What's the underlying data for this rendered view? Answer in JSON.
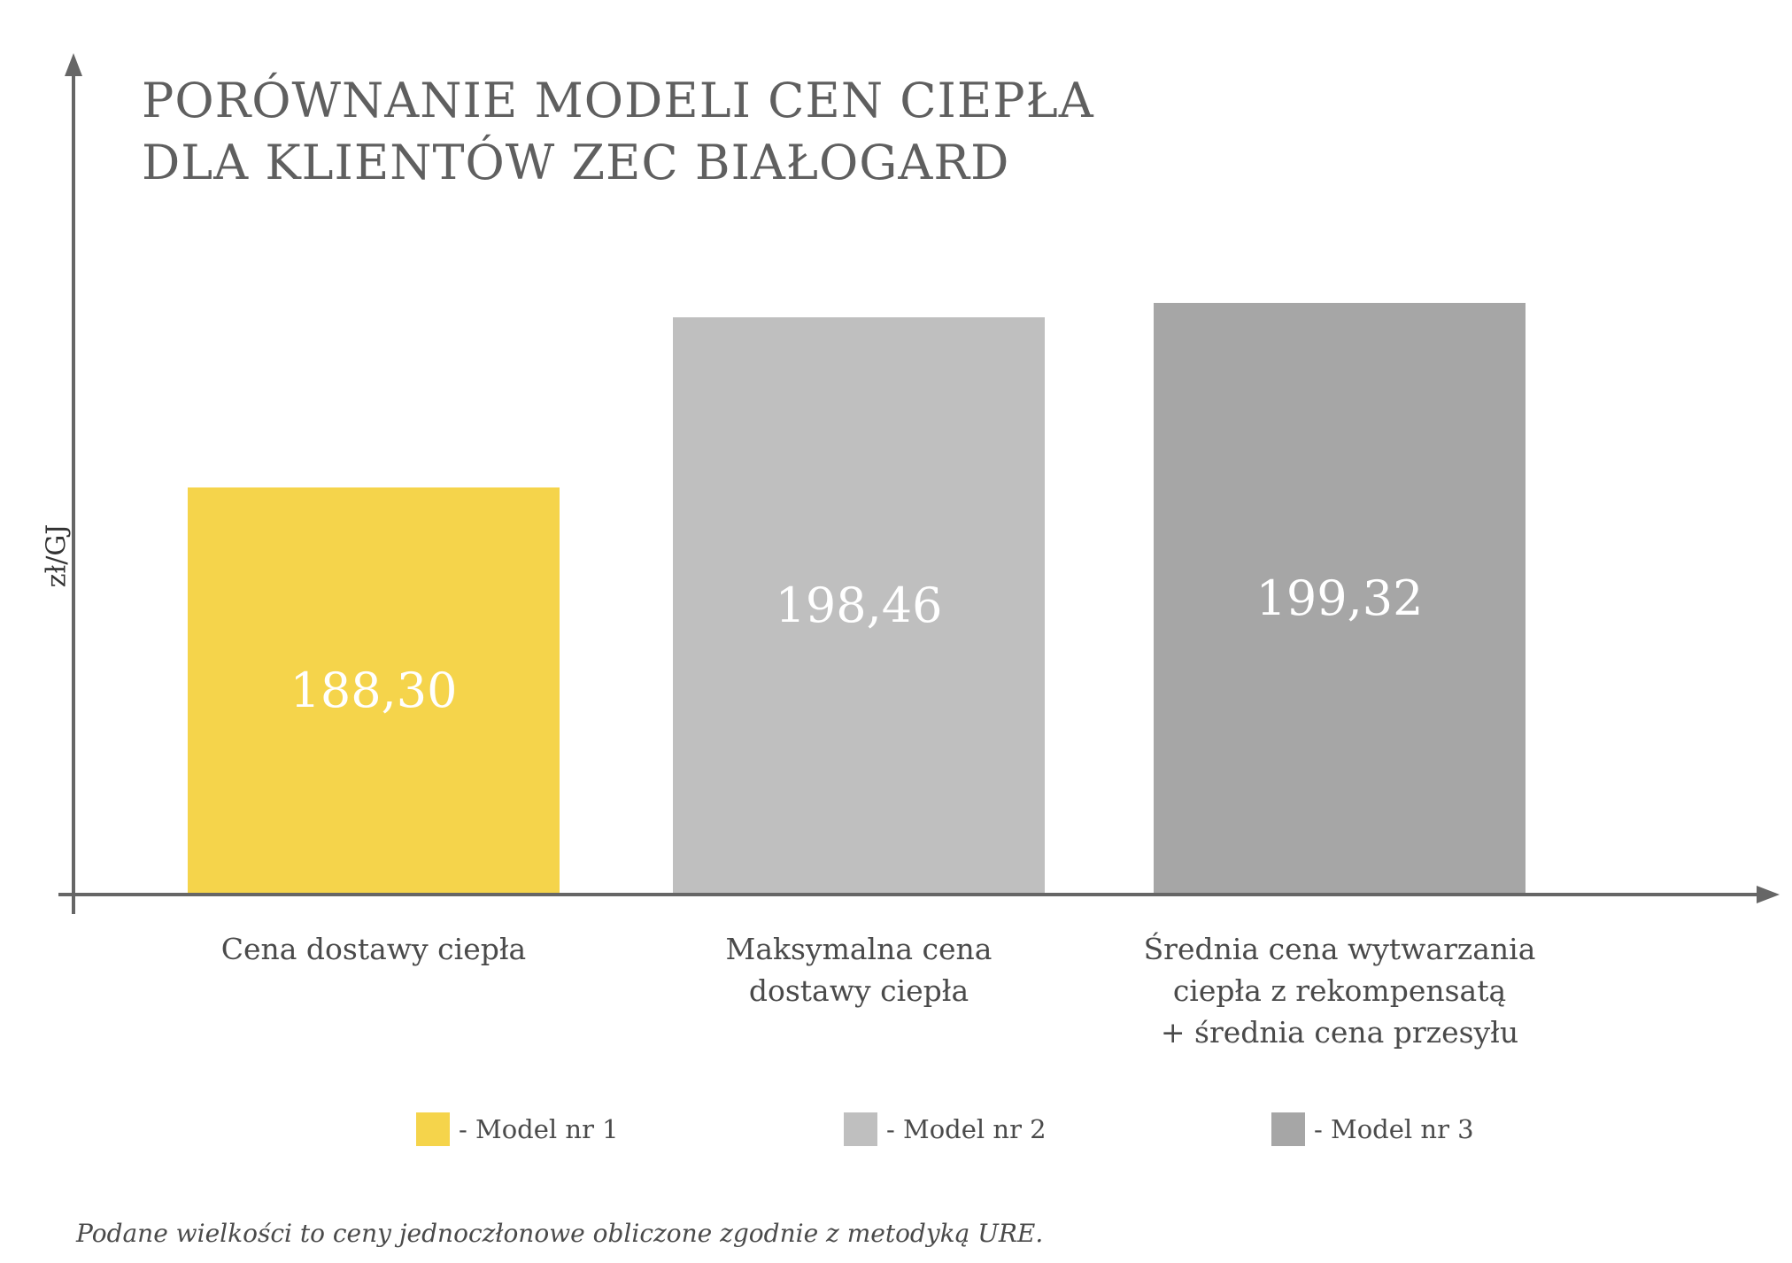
{
  "chart_data": {
    "type": "bar",
    "title": "PORÓWNANIE MODELI CEN CIEPŁA DLA KLIENTÓW ZEC BIAŁOGARD",
    "title_lines": [
      "PORÓWNANIE MODELI CEN CIEPŁA",
      "DLA KLIENTÓW ZEC BIAŁOGARD"
    ],
    "ylabel": "zł/GJ",
    "xlabel": "",
    "categories": [
      [
        "Cena dostawy ciepła"
      ],
      [
        "Maksymalna cena",
        "dostawy ciepła"
      ],
      [
        "Średnia cena wytwarzania",
        "ciepła z rekompensatą",
        "+ średnia cena przesyłu"
      ]
    ],
    "values": [
      188.3,
      198.46,
      199.32
    ],
    "value_labels": [
      "188,30",
      "198,46",
      "199,32"
    ],
    "ylim": [
      164,
      210
    ],
    "colors": [
      "#f5d44b",
      "#bfbfbf",
      "#a6a6a6"
    ],
    "grid": false,
    "legend_position": "bottom",
    "legend": [
      {
        "label": "- Model nr 1",
        "color": "#f5d44b"
      },
      {
        "label": "- Model nr 2",
        "color": "#bfbfbf"
      },
      {
        "label": "- Model nr 3",
        "color": "#a6a6a6"
      }
    ]
  },
  "footnote": "Podane wielkości to ceny jednoczłonowe obliczone zgodnie z metodyką URE.",
  "axis_color": "#666666",
  "value_label_color": "#ffffff"
}
